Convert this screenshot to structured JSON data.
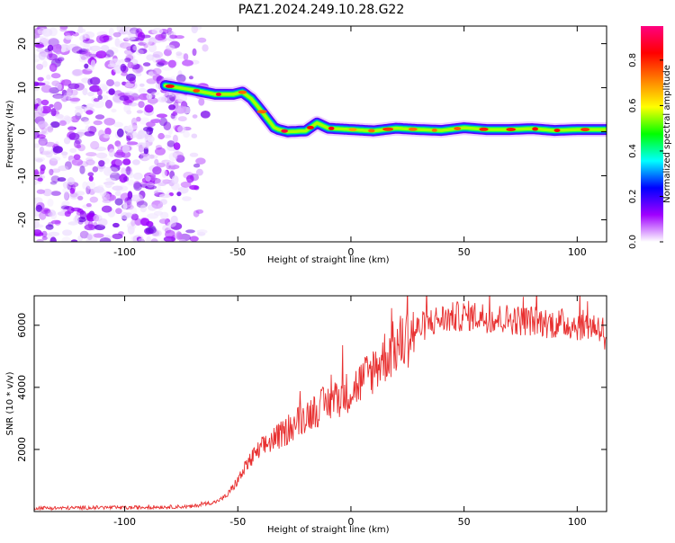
{
  "title": "PAZ1.2024.249.10.28.G22",
  "chart_data": [
    {
      "type": "heatmap",
      "name": "spectrogram",
      "xlabel": "Height of straight line (km)",
      "ylabel": "Frequency (Hz)",
      "xlim": [
        -140,
        113
      ],
      "ylim": [
        -25,
        24
      ],
      "xticks": [
        -100,
        -50,
        0,
        50,
        100
      ],
      "yticks": [
        20,
        10,
        0,
        -10,
        -20
      ],
      "colorbar": {
        "label": "Normalized spectral amplitude",
        "range": [
          0.0,
          0.95
        ],
        "ticks": [
          0.0,
          0.2,
          0.4,
          0.6,
          0.8
        ],
        "colormap": [
          "#ffffff",
          "#a000ff",
          "#0000ff",
          "#00ffff",
          "#00ff00",
          "#ffff00",
          "#ff8000",
          "#ff0000",
          "#ff0080"
        ]
      },
      "noise_region": {
        "x": [
          -140,
          -62
        ],
        "y": [
          -25,
          24
        ],
        "amplitude": [
          0.05,
          0.3
        ]
      },
      "ridge": {
        "x": [
          -82,
          -70,
          -60,
          -52,
          -48,
          -44,
          -40,
          -37,
          -34,
          -32,
          -28,
          -20,
          -15,
          -10,
          0,
          10,
          20,
          30,
          40,
          50,
          60,
          70,
          80,
          90,
          100,
          113
        ],
        "y": [
          10.5,
          9.5,
          8.5,
          8.5,
          9.0,
          7.5,
          5.0,
          3.0,
          1.0,
          0.5,
          0.0,
          0.2,
          2.0,
          0.8,
          0.5,
          0.2,
          0.8,
          0.5,
          0.3,
          0.9,
          0.5,
          0.5,
          0.7,
          0.3,
          0.5,
          0.5
        ],
        "peak_amplitude": 0.9
      }
    },
    {
      "type": "line",
      "name": "snr",
      "xlabel": "Height of straight line (km)",
      "ylabel": "SNR (10 * v/v)",
      "xlim": [
        -140,
        113
      ],
      "ylim": [
        0,
        6950
      ],
      "xticks": [
        -100,
        -50,
        0,
        50,
        100
      ],
      "yticks": [
        2000,
        4000,
        6000
      ],
      "color": "#e83030",
      "x": [
        -140,
        -130,
        -120,
        -110,
        -100,
        -90,
        -80,
        -70,
        -65,
        -60,
        -55,
        -50,
        -45,
        -40,
        -35,
        -30,
        -25,
        -20,
        -15,
        -10,
        -5,
        0,
        5,
        10,
        15,
        20,
        25,
        30,
        35,
        40,
        45,
        50,
        55,
        60,
        65,
        70,
        75,
        80,
        85,
        90,
        95,
        100,
        105,
        110,
        113
      ],
      "y": [
        120,
        110,
        120,
        130,
        120,
        140,
        150,
        160,
        250,
        300,
        500,
        1000,
        1600,
        2000,
        2300,
        2500,
        2800,
        3100,
        3300,
        3500,
        3700,
        3900,
        4200,
        4600,
        5000,
        5300,
        5600,
        5900,
        6100,
        6200,
        6250,
        6300,
        6300,
        6250,
        6200,
        6200,
        6150,
        6150,
        6100,
        6050,
        6050,
        6000,
        6000,
        5950,
        5700
      ]
    }
  ]
}
